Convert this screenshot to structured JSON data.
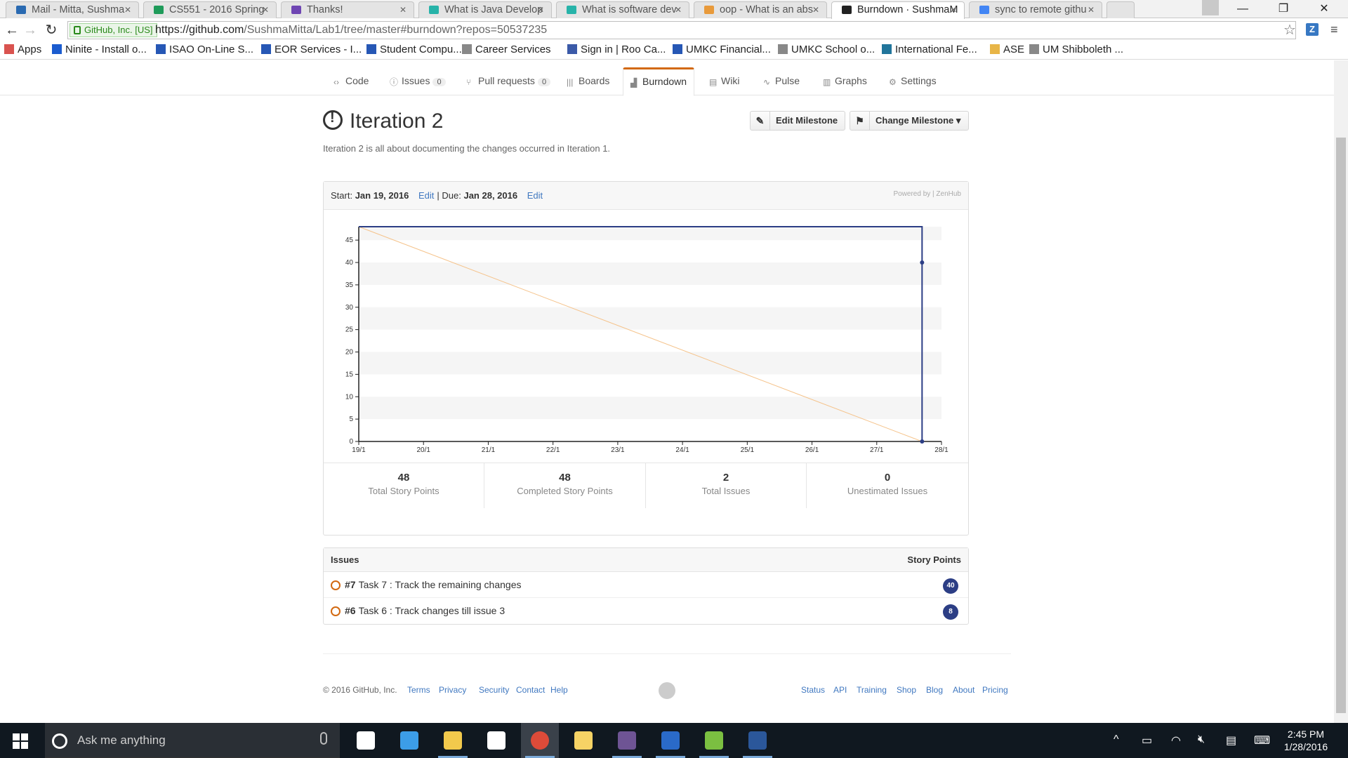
{
  "browser": {
    "tabs": [
      {
        "title": "Mail - Mitta, Sushma",
        "color": "#2a6ab1"
      },
      {
        "title": "CS551 - 2016 Spring",
        "color": "#1f9b5a"
      },
      {
        "title": "Thanks!",
        "color": "#6f46b3"
      },
      {
        "title": "What is Java Develop",
        "color": "#27b3a9"
      },
      {
        "title": "What is software dev",
        "color": "#27b3a9"
      },
      {
        "title": "oop - What is an abs",
        "color": "#e89a3b"
      },
      {
        "title": "Burndown · SushmaM",
        "color": "#222222"
      },
      {
        "title": "sync to remote githu",
        "color": "#4285f4"
      }
    ],
    "ev_label": "GitHub, Inc. [US]",
    "url_host": "https://github.com",
    "url_path": "/SushmaMitta/Lab1/tree/master#burndown?repos=50537235",
    "ext_label": "Z",
    "bookmarks": [
      {
        "label": "Apps",
        "icon": "apps-grid-icon",
        "color": "#d9534f"
      },
      {
        "label": "Ninite - Install o...",
        "icon": "ninite-icon",
        "color": "#1b5ccf"
      },
      {
        "label": "ISAO On-Line S...",
        "icon": "umkc-icon",
        "color": "#2657b5"
      },
      {
        "label": "EOR Services - I...",
        "icon": "umkc-icon",
        "color": "#2657b5"
      },
      {
        "label": "Student Compu...",
        "icon": "umkc-icon",
        "color": "#2657b5"
      },
      {
        "label": "Career Services",
        "icon": "page-icon",
        "color": "#888888"
      },
      {
        "label": "Sign in | Roo Ca...",
        "icon": "roo-icon",
        "color": "#3b5aa8"
      },
      {
        "label": "UMKC Financial...",
        "icon": "umkc-icon",
        "color": "#2657b5"
      },
      {
        "label": "UMKC School o...",
        "icon": "page-icon",
        "color": "#888888"
      },
      {
        "label": "International Fe...",
        "icon": "wordpress-icon",
        "color": "#21759b"
      },
      {
        "label": "ASE",
        "icon": "folder-icon",
        "color": "#e8b547"
      },
      {
        "label": "UM Shibboleth ...",
        "icon": "page-icon",
        "color": "#888888"
      }
    ]
  },
  "reponav": [
    {
      "label": "Code",
      "icon": "code-icon",
      "count": null
    },
    {
      "label": "Issues",
      "icon": "issue-icon",
      "count": "0"
    },
    {
      "label": "Pull requests",
      "icon": "pull-request-icon",
      "count": "0"
    },
    {
      "label": "Boards",
      "icon": "boards-icon",
      "count": null
    },
    {
      "label": "Burndown",
      "icon": "burndown-icon",
      "count": null
    },
    {
      "label": "Wiki",
      "icon": "wiki-icon",
      "count": null
    },
    {
      "label": "Pulse",
      "icon": "pulse-icon",
      "count": null
    },
    {
      "label": "Graphs",
      "icon": "graphs-icon",
      "count": null
    },
    {
      "label": "Settings",
      "icon": "gear-icon",
      "count": null
    }
  ],
  "milestone": {
    "title": "Iteration 2",
    "description": "Iteration 2 is all about documenting the changes occurred in Iteration 1.",
    "edit_label": "Edit Milestone",
    "change_label": "Change Milestone"
  },
  "burndown": {
    "start_label": "Start:",
    "start_date": "Jan 19, 2016",
    "due_label": "Due:",
    "due_date": "Jan 28, 2016",
    "edit_link": "Edit",
    "separator": "|",
    "powered": "Powered by | ZenHub"
  },
  "chart_data": {
    "type": "line",
    "x": [
      "19/1",
      "20/1",
      "21/1",
      "22/1",
      "23/1",
      "24/1",
      "25/1",
      "26/1",
      "27/1",
      "28/1"
    ],
    "ylim": [
      0,
      48
    ],
    "yticks": [
      0,
      5,
      10,
      15,
      20,
      25,
      30,
      35,
      40,
      45
    ],
    "grid": "alternating horizontal bands",
    "series": [
      {
        "kind": "ideal",
        "color": "#f5c38b",
        "points": [
          [
            0,
            48
          ],
          [
            8.7,
            0
          ]
        ]
      },
      {
        "kind": "actual",
        "color": "#2c3e85",
        "points": [
          [
            0,
            48
          ],
          [
            8.7,
            48
          ],
          [
            8.7,
            40
          ],
          [
            8.7,
            0
          ]
        ]
      }
    ]
  },
  "stats": [
    {
      "value": "48",
      "label": "Total Story Points"
    },
    {
      "value": "48",
      "label": "Completed Story Points"
    },
    {
      "value": "2",
      "label": "Total Issues"
    },
    {
      "value": "0",
      "label": "Unestimated Issues"
    }
  ],
  "issues": {
    "header": "Issues",
    "points_header": "Story Points",
    "rows": [
      {
        "number": "#7",
        "title": "Task 7 : Track the remaining changes",
        "points": "40"
      },
      {
        "number": "#6",
        "title": "Task 6 : Track changes till issue 3",
        "points": "8"
      }
    ]
  },
  "footer": {
    "copyright": "© 2016 GitHub, Inc.",
    "left_links": [
      "Terms",
      "Privacy",
      "Security",
      "Contact",
      "Help"
    ],
    "right_links": [
      "Status",
      "API",
      "Training",
      "Shop",
      "Blog",
      "About",
      "Pricing"
    ]
  },
  "taskbar": {
    "search_placeholder": "Ask me anything",
    "apps": [
      {
        "name": "task-view",
        "color": "#ffffff",
        "open": false
      },
      {
        "name": "edge",
        "color": "#3c9de8",
        "open": false
      },
      {
        "name": "file-explorer",
        "color": "#f2c94c",
        "open": true
      },
      {
        "name": "store",
        "color": "#ffffff",
        "open": false
      },
      {
        "name": "chrome",
        "color": "#dd4b39",
        "open": true
      },
      {
        "name": "folder",
        "color": "#f6d365",
        "open": false
      },
      {
        "name": "github-desktop",
        "color": "#6e5494",
        "open": true
      },
      {
        "name": "powershell",
        "color": "#2a6ac8",
        "open": true
      },
      {
        "name": "android-studio",
        "color": "#7bbf41",
        "open": true
      },
      {
        "name": "word",
        "color": "#2b579a",
        "open": true
      }
    ],
    "time": "2:45 PM",
    "date": "1/28/2016"
  }
}
